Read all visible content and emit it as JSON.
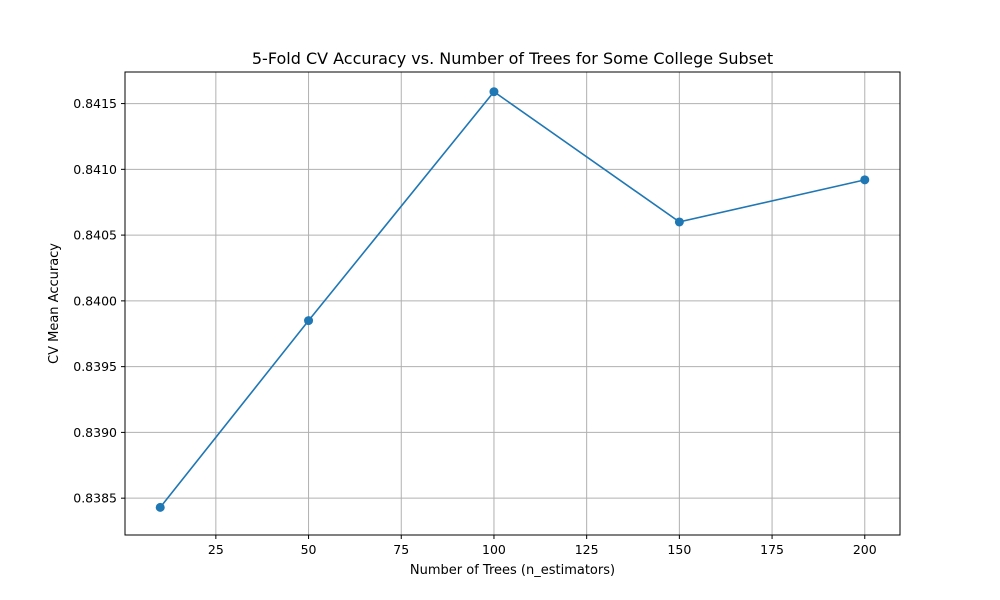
{
  "chart_data": {
    "type": "line",
    "title": "5-Fold CV Accuracy vs. Number of Trees for Some College Subset",
    "xlabel": "Number of Trees (n_estimators)",
    "ylabel": "CV Mean Accuracy",
    "xlim": [
      0.5,
      209.5
    ],
    "ylim": [
      0.83822,
      0.84174
    ],
    "xticks": [
      25,
      50,
      75,
      100,
      125,
      150,
      175,
      200
    ],
    "yticks": [
      0.8385,
      0.839,
      0.8395,
      0.84,
      0.8405,
      0.841,
      0.8415
    ],
    "ytick_labels": [
      "0.8385",
      "0.8390",
      "0.8395",
      "0.8400",
      "0.8405",
      "0.8410",
      "0.8415"
    ],
    "grid": true,
    "color": "#1f77b4",
    "series": [
      {
        "x": [
          10,
          50,
          100,
          150,
          200
        ],
        "y": [
          0.83843,
          0.83985,
          0.84159,
          0.8406,
          0.84092
        ]
      }
    ]
  }
}
